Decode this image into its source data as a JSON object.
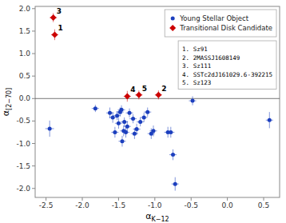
{
  "chart_data": {
    "type": "scatter",
    "xlabel": "αK−12",
    "ylabel": "α[2−70]",
    "xlim": [
      -2.65,
      0.72
    ],
    "ylim": [
      -2.2,
      2.05
    ],
    "xticks": [
      -2.5,
      {
        "value": -2.0,
        "label": "-2.0"
      },
      -1.5,
      {
        "value": -1.0,
        "label": "-1.0"
      },
      -0.5,
      {
        "value": 0.0,
        "label": "0.0"
      },
      0.5
    ],
    "yticks": [
      {
        "value": -2.0,
        "label": "-2.0"
      },
      -1.5,
      {
        "value": -1.0,
        "label": "-1.0"
      },
      -0.5,
      {
        "value": 0.0,
        "label": "0.0"
      },
      0.5,
      {
        "value": 1.0,
        "label": "1.0"
      },
      1.5,
      {
        "value": 2.0,
        "label": "2.0"
      }
    ],
    "hline_y": 0.0,
    "grid": false,
    "legend": "upper right",
    "series": [
      {
        "name": "Young Stellar Object",
        "color": "#1c3fbe",
        "marker": "circle",
        "x": [
          -2.45,
          -1.82,
          -1.62,
          -1.58,
          -1.55,
          -1.52,
          -1.5,
          -1.48,
          -1.46,
          -1.45,
          -1.43,
          -1.42,
          -1.4,
          -1.38,
          -1.35,
          -1.3,
          -1.28,
          -1.25,
          -1.2,
          -1.15,
          -1.1,
          -1.05,
          -1.02,
          -0.82,
          -0.78,
          -0.75,
          -0.72,
          -0.48,
          0.58
        ],
        "values": [
          -0.67,
          -0.22,
          -0.32,
          -0.42,
          -0.75,
          -0.38,
          -0.55,
          -0.3,
          -0.25,
          -0.95,
          -0.72,
          -0.52,
          -0.75,
          -0.62,
          -0.32,
          -0.45,
          -0.78,
          -0.68,
          -0.52,
          -0.42,
          -0.3,
          -0.78,
          -0.72,
          -0.75,
          -0.75,
          -1.25,
          -1.9,
          -0.05,
          -0.48
        ],
        "xerr": [
          0.06,
          0.05,
          0.05,
          0.05,
          0.05,
          0.05,
          0.05,
          0.05,
          0.05,
          0.05,
          0.05,
          0.05,
          0.05,
          0.05,
          0.05,
          0.05,
          0.05,
          0.05,
          0.05,
          0.05,
          0.05,
          0.05,
          0.05,
          0.05,
          0.05,
          0.05,
          0.05,
          0.05,
          0.05
        ],
        "yerr": [
          0.18,
          0.08,
          0.12,
          0.12,
          0.12,
          0.1,
          0.12,
          0.1,
          0.1,
          0.12,
          0.12,
          0.1,
          0.12,
          0.12,
          0.1,
          0.1,
          0.12,
          0.12,
          0.1,
          0.1,
          0.1,
          0.12,
          0.12,
          0.12,
          0.12,
          0.12,
          0.15,
          0.1,
          0.18
        ]
      },
      {
        "name": "Transitional Disk Candidate",
        "color": "#cc0000",
        "marker": "diamond",
        "x": [
          -2.38,
          -0.95,
          -2.4,
          -1.38,
          -1.22
        ],
        "values": [
          1.42,
          0.08,
          1.8,
          0.05,
          0.08
        ],
        "xerr": [
          0.05,
          0.05,
          0.05,
          0.05,
          0.05
        ],
        "yerr": [
          0.12,
          0.1,
          0.1,
          0.12,
          0.1
        ],
        "point_labels": [
          "1",
          "2",
          "3",
          "4",
          "5"
        ]
      }
    ],
    "annotation": [
      "1. Sz91",
      "2. 2MASSJ1608149",
      "3. Sz111",
      "4. SSTc2dJ161029.6-392215",
      "5. Sz123"
    ]
  }
}
